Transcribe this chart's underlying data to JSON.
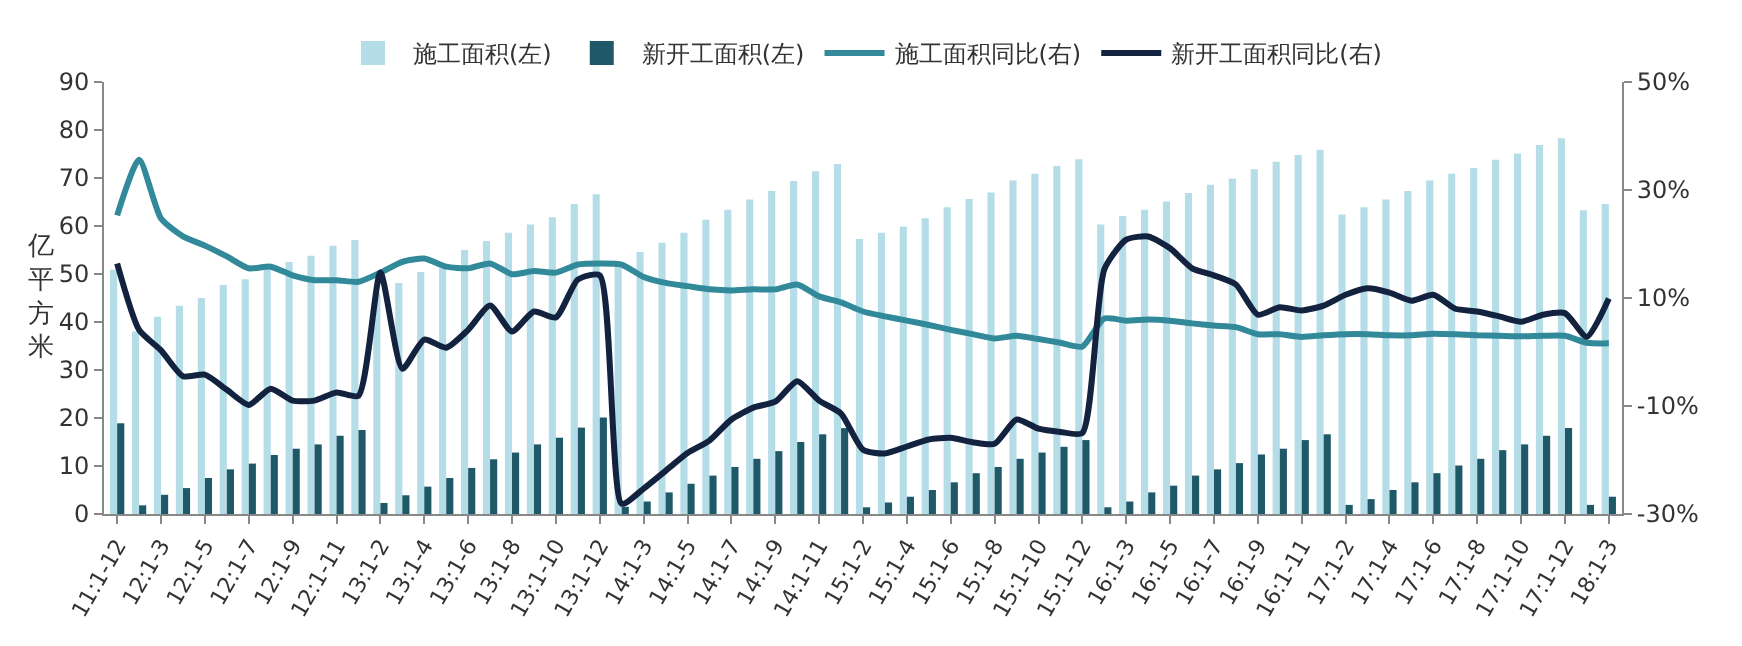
{
  "chart_data": {
    "type": "bar",
    "ylabel": "亿平方米",
    "categories": [
      "11:1-12",
      null,
      "12:1-3",
      null,
      "12:1-5",
      null,
      "12:1-7",
      null,
      "12:1-9",
      null,
      "12:1-11",
      null,
      "13:1-2",
      null,
      "13:1-4",
      null,
      "13:1-6",
      null,
      "13:1-8",
      null,
      "13:1-10",
      null,
      "13:1-12",
      null,
      "14:1-3",
      null,
      "14:1-5",
      null,
      "14:1-7",
      null,
      "14:1-9",
      null,
      "14:1-11",
      null,
      "15:1-2",
      null,
      "15:1-4",
      null,
      "15:1-6",
      null,
      "15:1-8",
      null,
      "15:1-10",
      null,
      "15:1-12",
      null,
      "16:1-3",
      null,
      "16:1-5",
      null,
      "16:1-7",
      null,
      "16:1-9",
      null,
      "16:1-11",
      null,
      "17:1-2",
      null,
      "17:1-4",
      null,
      "17:1-6",
      null,
      "17:1-8",
      null,
      "17:1-10",
      null,
      "17:1-12",
      null,
      "18:1-3"
    ],
    "series": [
      {
        "name": "施工面积(左)",
        "color": "#b4dde8",
        "values": [
          50.9,
          38,
          41.1,
          43.4,
          45,
          47.7,
          48.9,
          51.1,
          52.5,
          53.8,
          55.9,
          57.1,
          46,
          48.1,
          50.4,
          52,
          55,
          56.9,
          58.6,
          60.3,
          61.8,
          64.6,
          66.6,
          52,
          54.6,
          56.5,
          58.6,
          61.3,
          63.4,
          65.5,
          67.3,
          69.4,
          71.4,
          72.9,
          57.3,
          58.6,
          59.9,
          61.6,
          63.9,
          65.6,
          67,
          69.5,
          70.9,
          72.5,
          73.9,
          60.3,
          62.1,
          63.4,
          65.1,
          66.9,
          68.6,
          69.9,
          71.8,
          73.4,
          74.8,
          75.9,
          62.4,
          63.9,
          65.5,
          67.3,
          69.5,
          70.9,
          72.1,
          73.8,
          75.1,
          76.9,
          78.3,
          63.3,
          64.6
        ]
      },
      {
        "name": "新开工面积(左)",
        "color": "#1f5968",
        "values": [
          18.9,
          1.8,
          4,
          5.4,
          7.5,
          9.3,
          10.5,
          12.3,
          13.6,
          14.5,
          16.3,
          17.5,
          2.3,
          3.9,
          5.7,
          7.5,
          9.6,
          11.4,
          12.8,
          14.5,
          15.9,
          18,
          20.1,
          1.5,
          2.6,
          4.5,
          6.3,
          8,
          9.8,
          11.5,
          13.1,
          15,
          16.6,
          17.9,
          1.4,
          2.4,
          3.6,
          5,
          6.6,
          8.5,
          9.8,
          11.5,
          12.8,
          14,
          15.4,
          1.4,
          2.6,
          4.5,
          5.9,
          8,
          9.3,
          10.6,
          12.4,
          13.6,
          15.4,
          16.6,
          1.9,
          3.1,
          5,
          6.6,
          8.5,
          10.1,
          11.5,
          13.3,
          14.5,
          16.3,
          17.9,
          1.9,
          3.6
        ]
      },
      {
        "name": "施工面积同比(右)",
        "type": "line",
        "axis": "y2",
        "color": "#31899a",
        "values": [
          25.3,
          35.6,
          24.7,
          21.4,
          19.7,
          17.7,
          15.5,
          15.8,
          14.2,
          13.3,
          13.3,
          13,
          14.7,
          16.7,
          17.3,
          15.8,
          15.5,
          16.4,
          14.4,
          15,
          14.7,
          16.2,
          16.4,
          16.2,
          13.9,
          12.8,
          12.2,
          11.6,
          11.4,
          11.6,
          11.6,
          12.5,
          10.3,
          9.2,
          7.5,
          6.6,
          5.8,
          5,
          4.1,
          3.3,
          2.5,
          3,
          2.4,
          1.7,
          1,
          6.2,
          5.8,
          6,
          5.8,
          5.3,
          4.9,
          4.6,
          3.3,
          3.3,
          2.8,
          3.1,
          3.3,
          3.3,
          3.1,
          3.1,
          3.4,
          3.3,
          3.1,
          3,
          2.9,
          3,
          3,
          1.7,
          1.6
        ]
      },
      {
        "name": "新开工面积同比(右)",
        "type": "line",
        "axis": "y2",
        "color": "#13233f",
        "values": [
          16.4,
          4.1,
          0.3,
          -4.5,
          -4.2,
          -7,
          -9.8,
          -6.8,
          -9,
          -9,
          -7.5,
          -8.1,
          14.7,
          -3.1,
          2.3,
          0.8,
          4.1,
          8.6,
          3.8,
          7.5,
          6.4,
          13.4,
          14.2,
          -28.1,
          -25.3,
          -22,
          -18.7,
          -16.4,
          -12.5,
          -10.3,
          -9.2,
          -5.4,
          -9,
          -11.4,
          -18.1,
          -18.8,
          -17.5,
          -16.2,
          -15.9,
          -16.7,
          -17,
          -12.5,
          -14.2,
          -14.8,
          -15,
          15.3,
          20.8,
          21.4,
          19.2,
          15.5,
          14.2,
          12.5,
          6.9,
          8.3,
          7.7,
          8.6,
          10.6,
          11.8,
          11,
          9.5,
          10.6,
          8,
          7.5,
          6.6,
          5.6,
          6.9,
          7.2,
          2.8,
          9.9
        ]
      }
    ],
    "ylim": [
      0,
      90
    ],
    "yticks": [
      0,
      10,
      20,
      30,
      40,
      50,
      60,
      70,
      80,
      90
    ],
    "y2lim": [
      -30,
      50
    ],
    "y2ticks": [
      {
        "value": -30,
        "label": "-30%"
      },
      {
        "value": -10,
        "label": "-10%"
      },
      {
        "value": 10,
        "label": "10%"
      },
      {
        "value": 30,
        "label": "30%"
      },
      {
        "value": 50,
        "label": "50%"
      }
    ],
    "legend": "top",
    "marker": "none",
    "line_style": "solid"
  }
}
